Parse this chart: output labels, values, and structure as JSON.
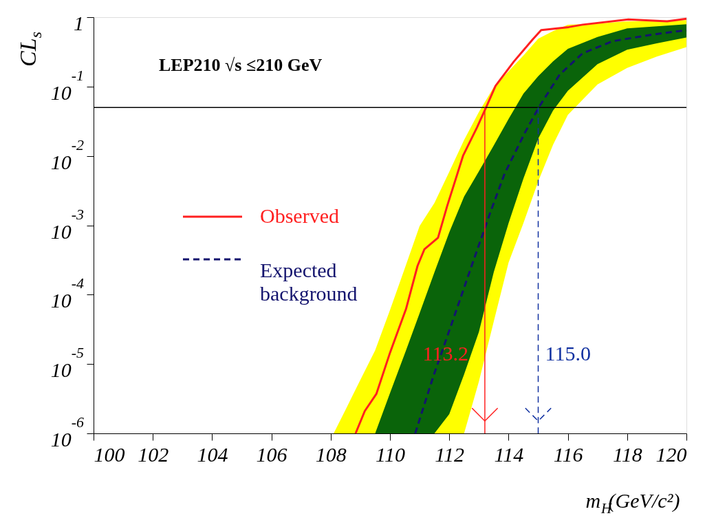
{
  "chart_data": {
    "type": "line",
    "xlabel": "m$_{H}$(GeV/c²)",
    "ylabel": "CL$_{s}$",
    "annotations": [
      "LEP210 √s ≤210 GeV"
    ],
    "xlim": [
      100,
      120
    ],
    "xticks": [
      100,
      102,
      104,
      106,
      108,
      110,
      112,
      114,
      116,
      118,
      120
    ],
    "ylim": [
      1e-06,
      1
    ],
    "log": true,
    "yticks": [
      {
        "value": 1e-06,
        "label": "10$^{-6}$"
      },
      {
        "value": 1e-05,
        "label": "10$^{-5}$"
      },
      {
        "value": 0.0001,
        "label": "10$^{-4}$"
      },
      {
        "value": 0.001,
        "label": "10$^{-3}$"
      },
      {
        "value": 0.01,
        "label": "10$^{-2}$"
      },
      {
        "value": 0.1,
        "label": "10$^{-1}$"
      },
      1
    ],
    "grid": false,
    "legend": "left",
    "series": [
      {
        "color": "#ffff00",
        "x": [
          108.1,
          108.5,
          109,
          109.5,
          110,
          110.5,
          111,
          111.5,
          112,
          112.5,
          113,
          113.5,
          114,
          114.5,
          115,
          115.5,
          116,
          117,
          118,
          119,
          120
        ],
        "values": [
          null,
          null,
          null,
          null,
          null,
          null,
          null,
          null,
          null,
          null,
          null,
          null,
          null,
          null,
          null,
          null,
          null,
          null,
          null,
          null,
          null
        ],
        "upper": [
          1e-06,
          2.19e-06,
          5.9e-06,
          1.58e-05,
          6e-05,
          0.00024,
          0.00098,
          0.0021,
          0.0059,
          0.017,
          0.043,
          0.098,
          0.166,
          0.28,
          0.49,
          0.63,
          0.78,
          0.81,
          0.87,
          0.89,
          0.91
        ],
        "lower": [
          1e-06,
          1e-06,
          1e-06,
          1e-06,
          1e-06,
          1e-06,
          1e-06,
          1e-06,
          1e-06,
          1e-06,
          5.6e-06,
          4.1e-05,
          0.00029,
          0.00107,
          0.0043,
          0.0145,
          0.039,
          0.107,
          0.186,
          0.27,
          0.37
        ]
      },
      {
        "name": "Observed",
        "color": "#ff2020",
        "line_style": "solid",
        "x": [
          108.84,
          109.15,
          109.54,
          110.0,
          110.54,
          110.93,
          111.16,
          111.62,
          111.93,
          112.47,
          112.94,
          113.25,
          113.56,
          114.18,
          114.8,
          115.1,
          116.03,
          116.5,
          118.04,
          119.35,
          120
        ],
        "values": [
          1e-06,
          2.1e-06,
          3.7e-06,
          1.45e-05,
          6.2e-05,
          0.00026,
          0.00045,
          0.00066,
          0.0019,
          0.0102,
          0.026,
          0.051,
          0.102,
          0.23,
          0.47,
          0.65,
          0.72,
          0.78,
          0.93,
          0.87,
          0.95
        ]
      },
      {
        "color": "#0a640a",
        "x": [
          109.5,
          110,
          110.5,
          111,
          111.5,
          112,
          112.5,
          113,
          113.5,
          114,
          114.5,
          115,
          115.5,
          116,
          117,
          118,
          119,
          120
        ],
        "values": [
          null,
          null,
          null,
          null,
          null,
          null,
          null,
          null,
          null,
          null,
          null,
          null,
          null,
          null,
          null,
          null,
          null,
          null
        ],
        "upper": [
          1e-06,
          3.8e-06,
          1.41e-05,
          5.4e-05,
          0.00021,
          0.00079,
          0.0026,
          0.006,
          0.0141,
          0.034,
          0.079,
          0.141,
          0.23,
          0.35,
          0.52,
          0.69,
          0.74,
          0.79
        ],
        "lower": [
          1e-06,
          1e-06,
          1e-06,
          1e-06,
          1e-06,
          1.9e-06,
          7.1e-06,
          2.9e-05,
          0.00021,
          0.00107,
          0.0047,
          0.0178,
          0.045,
          0.087,
          0.21,
          0.34,
          0.42,
          0.51
        ]
      },
      {
        "name": "Expected background",
        "color": "#14146e",
        "line_style": "dashed",
        "x": [
          110.85,
          111.47,
          112.09,
          112.78,
          113.4,
          113.87,
          114.56,
          115.03,
          115.72,
          116.49,
          117.5,
          118.82,
          120
        ],
        "values": [
          1e-06,
          6.8e-06,
          3.9e-05,
          0.00028,
          0.0016,
          0.0056,
          0.022,
          0.051,
          0.148,
          0.3,
          0.45,
          0.56,
          0.65
        ]
      }
    ],
    "ref_lines": [
      {
        "axis": "y",
        "value": 0.05,
        "color": "#000000",
        "line_style": "solid"
      },
      {
        "axis": "x",
        "value": 113.2,
        "label": "113.2",
        "color": "#ff2020",
        "line_style": "solid"
      },
      {
        "axis": "x",
        "value": 115.0,
        "label": "115.0",
        "color": "#1030a0",
        "line_style": "dashed"
      }
    ]
  }
}
